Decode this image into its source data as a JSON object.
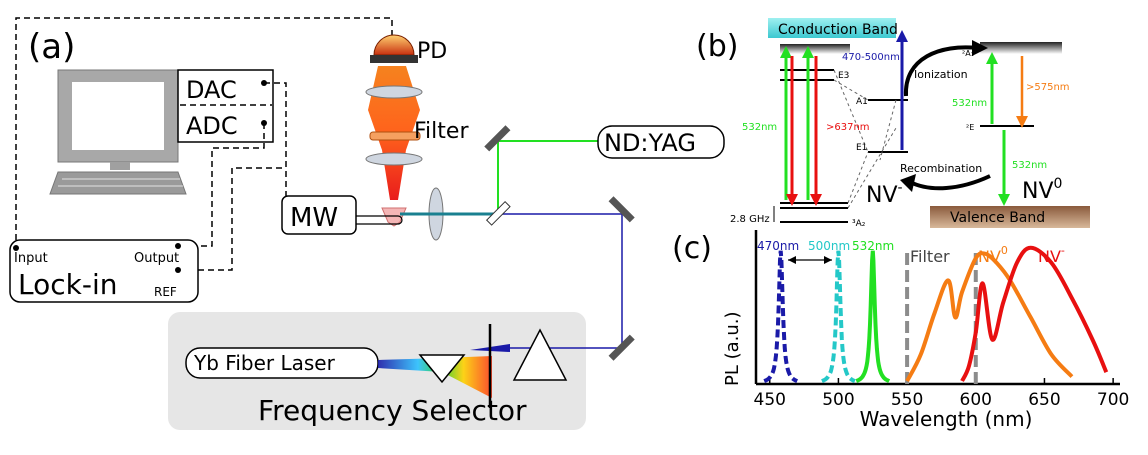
{
  "panel_a": {
    "label": "(a)",
    "dac": "DAC",
    "adc": "ADC",
    "pd": "PD",
    "filter": "Filter",
    "nd_yag": "ND:YAG",
    "mw": "MW",
    "lockin": "Lock-in",
    "lockin_input": "Input",
    "lockin_output": "Output",
    "lockin_ref": "REF",
    "yb_laser": "Yb Fiber Laser",
    "freq_selector": "Frequency Selector"
  },
  "panel_b": {
    "label": "(b)",
    "conduction_band": "Conduction Band",
    "valence_band": "Valence Band",
    "nv_minus": "NV",
    "nv_minus_sup": "-",
    "nv_zero": "NV",
    "nv_zero_sup": "0",
    "ionization": "Ionization",
    "recombination": "Recombination",
    "w_470_500": "470-500nm",
    "w_532_left": "532nm",
    "w_637": ">637nm",
    "w_532_right": "532nm",
    "w_575": ">575nm",
    "w_532_bottom": "532nm",
    "lvl_e3": "E3",
    "lvl_a1": "A1",
    "lvl_e1": "E1",
    "lvl_2a1": "²A₁",
    "lvl_2e": "²E",
    "lvl_3a2": "³A₂",
    "ghz": "2.8 GHz"
  },
  "panel_c": {
    "label": "(c)",
    "marker_470": "470nm",
    "marker_500": "500nm",
    "marker_532": "532nm",
    "filter_label": "Filter",
    "nv0_label": "NV",
    "nv0_sup": "0",
    "nvm_label": "NV",
    "nvm_sup": "-"
  },
  "colors": {
    "green": "#22e022",
    "red": "#e81010",
    "orange": "#f57c13",
    "blue": "#1a1aa8",
    "cyan": "#24c8c8",
    "conduction": "#5ad8dc",
    "valence": "#b98a66",
    "gray": "#8c8c8c"
  },
  "chart_data": {
    "type": "line",
    "xlabel": "Wavelength (nm)",
    "ylabel": "PL (a.u.)",
    "xlim": [
      440,
      705
    ],
    "x_ticks": [
      450,
      500,
      550,
      600,
      650,
      700
    ],
    "ylim": [
      0,
      1
    ],
    "grid": false,
    "vlines": [
      {
        "label": "Filter",
        "x": 550
      },
      {
        "label": "",
        "x": 600
      }
    ],
    "peaks": [
      {
        "label": "470nm",
        "center": 458,
        "height": 0.9
      },
      {
        "label": "500nm",
        "center": 500,
        "height": 0.9
      },
      {
        "label": "532nm",
        "center": 525,
        "height": 0.9
      }
    ],
    "series": [
      {
        "name": "NV0",
        "x": [
          550,
          560,
          570,
          580,
          585,
          590,
          600,
          607,
          615,
          625,
          640,
          655,
          670
        ],
        "y": [
          0.02,
          0.2,
          0.48,
          0.7,
          0.45,
          0.62,
          0.85,
          0.88,
          0.82,
          0.7,
          0.45,
          0.2,
          0.05
        ]
      },
      {
        "name": "NV-",
        "x": [
          590,
          595,
          600,
          605,
          612,
          620,
          630,
          640,
          655,
          670,
          685,
          695
        ],
        "y": [
          0.02,
          0.12,
          0.35,
          0.68,
          0.3,
          0.55,
          0.82,
          0.92,
          0.82,
          0.58,
          0.3,
          0.08
        ]
      }
    ]
  }
}
